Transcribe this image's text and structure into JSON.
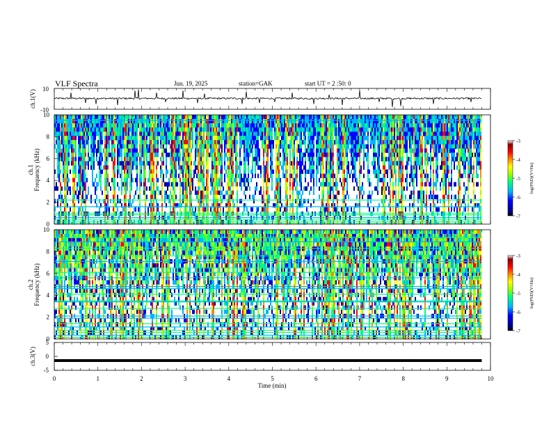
{
  "header": {
    "title": "VLF Spectra",
    "date": "Jun. 19, 2025",
    "station": "station=GAK",
    "start": "start UT =  2 :50: 0"
  },
  "chart_data": [
    {
      "type": "line",
      "name": "ch1-waveform",
      "ylabel": "ch.1(V)",
      "ylim": [
        -10,
        10
      ],
      "yticks": [
        10,
        -10
      ],
      "baseline": 0.4,
      "spikes": [
        {
          "x": 0.38,
          "y": 6
        },
        {
          "x": 0.72,
          "y": -4
        },
        {
          "x": 0.95,
          "y": -5
        },
        {
          "x": 1.45,
          "y": -6
        },
        {
          "x": 1.85,
          "y": 8
        },
        {
          "x": 1.93,
          "y": 9
        },
        {
          "x": 2.35,
          "y": 6
        },
        {
          "x": 2.55,
          "y": -3
        },
        {
          "x": 2.95,
          "y": 8
        },
        {
          "x": 3.28,
          "y": -4
        },
        {
          "x": 3.45,
          "y": 5
        },
        {
          "x": 4.3,
          "y": -5
        },
        {
          "x": 4.4,
          "y": 7
        },
        {
          "x": 4.7,
          "y": -4
        },
        {
          "x": 5.05,
          "y": -3
        },
        {
          "x": 5.45,
          "y": 6
        },
        {
          "x": 5.95,
          "y": -5
        },
        {
          "x": 6.3,
          "y": 4
        },
        {
          "x": 6.6,
          "y": -6
        },
        {
          "x": 7.0,
          "y": 8
        },
        {
          "x": 7.45,
          "y": -3
        },
        {
          "x": 7.75,
          "y": -8
        },
        {
          "x": 7.95,
          "y": -7
        },
        {
          "x": 8.7,
          "y": -5
        },
        {
          "x": 9.55,
          "y": -3
        }
      ]
    },
    {
      "type": "heatmap",
      "name": "ch1-spectrogram",
      "ylabel": "Frequency (kHz)",
      "channel_label": "ch.1",
      "ylim": [
        0,
        10
      ],
      "yticks": [
        0,
        2,
        4,
        6,
        8,
        10
      ],
      "colorbar": {
        "label": "log(PSD)(V²/Hz)",
        "range": [
          -7,
          -3
        ],
        "ticks": [
          -3,
          -4,
          -5,
          -6,
          -7
        ]
      },
      "lines_khz": [
        0.1,
        0.25,
        0.45,
        0.6,
        0.85,
        1.0,
        1.6,
        2.2,
        9.5
      ],
      "activity": 0.55
    },
    {
      "type": "heatmap",
      "name": "ch2-spectrogram",
      "ylabel": "Frequency (kHz)",
      "channel_label": "ch.2",
      "ylim": [
        0,
        10
      ],
      "yticks": [
        0,
        2,
        4,
        6,
        8,
        10
      ],
      "colorbar": {
        "label": "log(PSD)(V²/Hz)",
        "range": [
          -7,
          -3
        ],
        "ticks": [
          -3,
          -4,
          -5,
          -6,
          -7
        ]
      },
      "lines_khz": [
        0.15,
        0.35,
        0.6,
        0.8,
        1.1,
        1.4,
        1.9,
        2.1,
        2.8,
        3.4,
        3.5,
        4.1,
        4.6,
        4.8,
        5.6,
        6.1,
        6.5,
        7.1,
        7.6,
        8.3,
        8.9,
        9.3
      ],
      "activity": 0.8
    },
    {
      "type": "line",
      "name": "ch3-waveform",
      "ylabel": "ch.3(V)",
      "ylim": [
        -5,
        5
      ],
      "yticks": [
        5,
        0,
        -5
      ],
      "level": -1.5
    }
  ],
  "xaxis": {
    "label": "Time (min)",
    "range": [
      0,
      10
    ],
    "ticks": [
      "0",
      "1",
      "2",
      "3",
      "4",
      "5",
      "6",
      "7",
      "8",
      "9",
      "10"
    ]
  },
  "data_end_min": 9.8,
  "colors": {
    "scale": [
      "#000000",
      "#00008b",
      "#0000ff",
      "#00b4ff",
      "#00ff80",
      "#9aff00",
      "#ffff00",
      "#ff8c00",
      "#ff0000",
      "#8b0000",
      "#ffffff"
    ]
  }
}
